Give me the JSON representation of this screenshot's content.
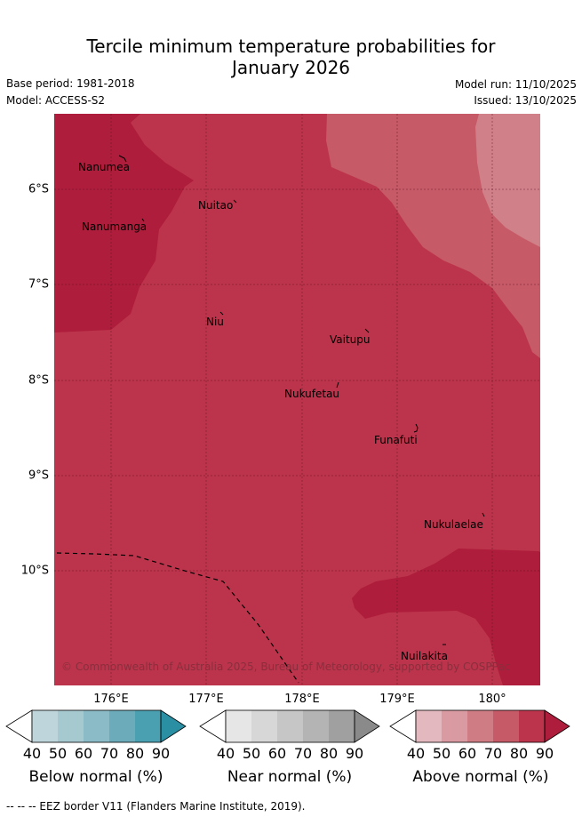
{
  "header": {
    "title_line1": "Tercile minimum temperature probabilities for",
    "title_line2": "January 2026",
    "base_period": "Base period: 1981-2018",
    "model": "Model: ACCESS-S2",
    "model_run": "Model run: 11/10/2025",
    "issued": "Issued: 13/10/2025"
  },
  "map": {
    "latitude_labels": [
      "6°S",
      "7°S",
      "8°S",
      "9°S",
      "10°S"
    ],
    "longitude_labels": [
      "176°E",
      "177°E",
      "178°E",
      "179°E",
      "180°"
    ],
    "places": {
      "nanumea": "Nanumea",
      "nuitao": "Nuitao",
      "nanumanga": "Nanumanga",
      "niu": "Niu",
      "vaitupu": "Vaitupu",
      "nukufetau": "Nukufetau",
      "funafuti": "Funafuti",
      "nukulaelae": "Nukulaelae",
      "nuilakita": "Nuilakita"
    },
    "copyright": "© Commonwealth of Australia 2025, Bureau of Meteorology, supported by COSPPac",
    "colors": {
      "above_50": "#d08088",
      "above_60": "#c65a66",
      "above_70": "#bc344b",
      "above_80": "#ae1d3b"
    }
  },
  "legend": {
    "below": {
      "title": "Below normal (%)",
      "ticks": [
        "40",
        "50",
        "60",
        "70",
        "80",
        "90"
      ],
      "colors": [
        "#bfd5dc",
        "#a6c9d0",
        "#8bbbc6",
        "#6cabba",
        "#4aa0b1",
        "#2b8fa3"
      ]
    },
    "near": {
      "title": "Near normal (%)",
      "ticks": [
        "40",
        "50",
        "60",
        "70",
        "80",
        "90"
      ],
      "colors": [
        "#e6e6e6",
        "#d7d7d7",
        "#c6c6c6",
        "#b4b4b4",
        "#a0a0a0",
        "#8a8a8a"
      ]
    },
    "above": {
      "title": "Above normal (%)",
      "ticks": [
        "40",
        "50",
        "60",
        "70",
        "80",
        "90"
      ],
      "colors": [
        "#e4b8bf",
        "#d99aa2",
        "#d07c84",
        "#c65a66",
        "#bc344b",
        "#ae1d3b"
      ]
    }
  },
  "footer": "--  --  -- EEZ border V11 (Flanders Marine Institute, 2019)."
}
